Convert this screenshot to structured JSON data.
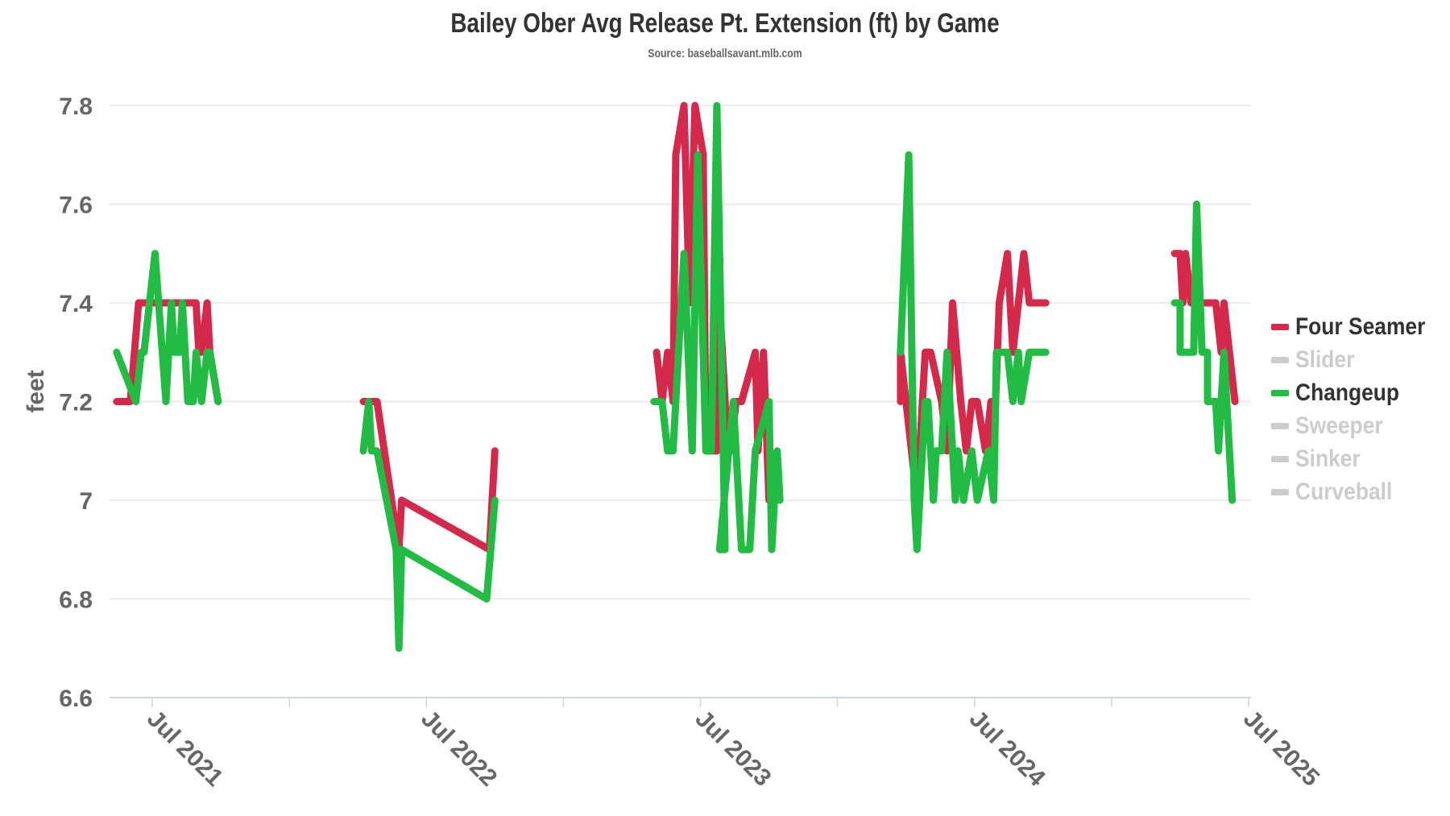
{
  "title": "Bailey Ober Avg Release Pt. Extension (ft) by Game",
  "subtitle": "Source: baseballsavant.mlb.com",
  "legend": [
    {
      "name": "Four Seamer",
      "color": "#D4294A",
      "active": true
    },
    {
      "name": "Slider",
      "color": "#CCCCCC",
      "active": false
    },
    {
      "name": "Changeup",
      "color": "#22BB44",
      "active": true
    },
    {
      "name": "Sweeper",
      "color": "#CCCCCC",
      "active": false
    },
    {
      "name": "Sinker",
      "color": "#CCCCCC",
      "active": false
    },
    {
      "name": "Curveball",
      "color": "#CCCCCC",
      "active": false
    }
  ],
  "colors": {
    "four_seamer": "#D4294A",
    "changeup": "#22BB44",
    "inactive": "#CCCCCC",
    "grid": "#E6E6E6",
    "axis": "#CCD6EB",
    "text": "#666666",
    "title": "#333333"
  },
  "chart_data": {
    "type": "line",
    "title": "Bailey Ober Avg Release Pt. Extension (ft) by Game",
    "subtitle": "Source: baseballsavant.mlb.com",
    "xlabel": "",
    "ylabel": "feet",
    "ylim": [
      6.6,
      7.8
    ],
    "yticks": [
      "7.8",
      "7.6",
      "7.4",
      "7.2",
      "7",
      "6.8",
      "6.6"
    ],
    "ytick_values": [
      7.8,
      7.6,
      7.4,
      7.2,
      7.0,
      6.8,
      6.6
    ],
    "xticks": [
      "Jul 2021",
      "Jul 2022",
      "Jul 2023",
      "Jul 2024",
      "Jul 2025"
    ],
    "xtick_values": [
      2021.5,
      2022.5,
      2023.5,
      2024.5,
      2025.5
    ],
    "xminor_values": [
      2022.0,
      2023.0,
      2024.0,
      2025.0
    ],
    "xlim": [
      2021.36,
      2025.51
    ],
    "grid": true,
    "legend_position": "right",
    "series": [
      {
        "name": "Four Seamer",
        "color": "#D4294A",
        "segments": [
          [
            [
              2021.37,
              7.2
            ],
            [
              2021.42,
              7.2
            ],
            [
              2021.45,
              7.4
            ],
            [
              2021.47,
              7.4
            ],
            [
              2021.63,
              7.4
            ],
            [
              2021.66,
              7.4
            ],
            [
              2021.67,
              7.3
            ],
            [
              2021.68,
              7.3
            ],
            [
              2021.7,
              7.4
            ],
            [
              2021.71,
              7.3
            ],
            [
              2021.74,
              7.2
            ]
          ],
          [
            [
              2022.27,
              7.2
            ],
            [
              2022.29,
              7.2
            ],
            [
              2022.32,
              7.2
            ],
            [
              2022.4,
              6.9
            ],
            [
              2022.41,
              7.0
            ],
            [
              2022.73,
              6.9
            ],
            [
              2022.75,
              7.1
            ]
          ],
          [
            [
              2023.34,
              7.3
            ],
            [
              2023.36,
              7.2
            ],
            [
              2023.38,
              7.3
            ],
            [
              2023.4,
              7.2
            ],
            [
              2023.41,
              7.7
            ],
            [
              2023.44,
              7.8
            ],
            [
              2023.46,
              7.4
            ],
            [
              2023.48,
              7.8
            ],
            [
              2023.51,
              7.7
            ],
            [
              2023.52,
              7.1
            ],
            [
              2023.56,
              7.1
            ],
            [
              2023.57,
              7.4
            ],
            [
              2023.6,
              7.1
            ],
            [
              2023.61,
              7.1
            ],
            [
              2023.63,
              7.2
            ],
            [
              2023.65,
              7.2
            ],
            [
              2023.7,
              7.3
            ],
            [
              2023.71,
              7.1
            ],
            [
              2023.73,
              7.3
            ],
            [
              2023.75,
              7.0
            ]
          ],
          [
            [
              2024.23,
              7.2
            ],
            [
              2024.23,
              7.3
            ],
            [
              2024.29,
              7.0
            ],
            [
              2024.32,
              7.3
            ],
            [
              2024.34,
              7.3
            ],
            [
              2024.38,
              7.2
            ],
            [
              2024.4,
              7.1
            ],
            [
              2024.42,
              7.4
            ],
            [
              2024.45,
              7.2
            ],
            [
              2024.47,
              7.1
            ],
            [
              2024.49,
              7.2
            ],
            [
              2024.51,
              7.2
            ],
            [
              2024.54,
              7.1
            ],
            [
              2024.56,
              7.2
            ],
            [
              2024.57,
              7.1
            ],
            [
              2024.59,
              7.4
            ],
            [
              2024.62,
              7.5
            ],
            [
              2024.64,
              7.3
            ],
            [
              2024.68,
              7.5
            ],
            [
              2024.7,
              7.4
            ],
            [
              2024.76,
              7.4
            ]
          ],
          [
            [
              2025.23,
              7.5
            ],
            [
              2025.25,
              7.5
            ],
            [
              2025.26,
              7.4
            ],
            [
              2025.27,
              7.5
            ],
            [
              2025.29,
              7.4
            ],
            [
              2025.35,
              7.4
            ],
            [
              2025.38,
              7.4
            ],
            [
              2025.4,
              7.3
            ],
            [
              2025.41,
              7.4
            ],
            [
              2025.45,
              7.2
            ]
          ]
        ]
      },
      {
        "name": "Changeup",
        "color": "#22BB44",
        "segments": [
          [
            [
              2021.37,
              7.3
            ],
            [
              2021.44,
              7.2
            ],
            [
              2021.46,
              7.3
            ],
            [
              2021.47,
              7.3
            ],
            [
              2021.51,
              7.5
            ],
            [
              2021.55,
              7.2
            ],
            [
              2021.57,
              7.4
            ],
            [
              2021.58,
              7.3
            ],
            [
              2021.6,
              7.3
            ],
            [
              2021.61,
              7.4
            ],
            [
              2021.63,
              7.2
            ],
            [
              2021.65,
              7.2
            ],
            [
              2021.66,
              7.3
            ],
            [
              2021.68,
              7.2
            ],
            [
              2021.7,
              7.3
            ],
            [
              2021.71,
              7.3
            ],
            [
              2021.74,
              7.2
            ]
          ],
          [
            [
              2022.27,
              7.1
            ],
            [
              2022.29,
              7.2
            ],
            [
              2022.3,
              7.1
            ],
            [
              2022.32,
              7.1
            ],
            [
              2022.39,
              6.9
            ],
            [
              2022.4,
              6.7
            ],
            [
              2022.41,
              6.9
            ],
            [
              2022.72,
              6.8
            ],
            [
              2022.75,
              7.0
            ]
          ],
          [
            [
              2023.33,
              7.2
            ],
            [
              2023.36,
              7.2
            ],
            [
              2023.38,
              7.1
            ],
            [
              2023.4,
              7.1
            ],
            [
              2023.44,
              7.5
            ],
            [
              2023.47,
              7.1
            ],
            [
              2023.49,
              7.7
            ],
            [
              2023.52,
              7.1
            ],
            [
              2023.54,
              7.1
            ],
            [
              2023.56,
              7.8
            ],
            [
              2023.59,
              6.9
            ],
            [
              2023.57,
              6.9
            ],
            [
              2023.62,
              7.2
            ],
            [
              2023.65,
              6.9
            ],
            [
              2023.68,
              6.9
            ],
            [
              2023.7,
              7.1
            ],
            [
              2023.75,
              7.2
            ],
            [
              2023.76,
              6.9
            ],
            [
              2023.78,
              7.1
            ],
            [
              2023.79,
              7.0
            ]
          ],
          [
            [
              2024.23,
              7.3
            ],
            [
              2024.26,
              7.7
            ],
            [
              2024.28,
              7.0
            ],
            [
              2024.29,
              6.9
            ],
            [
              2024.32,
              7.2
            ],
            [
              2024.33,
              7.2
            ],
            [
              2024.35,
              7.0
            ],
            [
              2024.36,
              7.1
            ],
            [
              2024.38,
              7.1
            ],
            [
              2024.4,
              7.3
            ],
            [
              2024.43,
              7.0
            ],
            [
              2024.44,
              7.1
            ],
            [
              2024.46,
              7.0
            ],
            [
              2024.49,
              7.1
            ],
            [
              2024.51,
              7.0
            ],
            [
              2024.55,
              7.1
            ],
            [
              2024.57,
              7.0
            ],
            [
              2024.58,
              7.3
            ],
            [
              2024.62,
              7.3
            ],
            [
              2024.64,
              7.2
            ],
            [
              2024.66,
              7.3
            ],
            [
              2024.67,
              7.2
            ],
            [
              2024.7,
              7.3
            ],
            [
              2024.76,
              7.3
            ]
          ],
          [
            [
              2025.23,
              7.4
            ],
            [
              2025.25,
              7.4
            ],
            [
              2025.25,
              7.3
            ],
            [
              2025.3,
              7.3
            ],
            [
              2025.31,
              7.6
            ],
            [
              2025.33,
              7.3
            ],
            [
              2025.35,
              7.3
            ],
            [
              2025.35,
              7.2
            ],
            [
              2025.38,
              7.2
            ],
            [
              2025.39,
              7.1
            ],
            [
              2025.41,
              7.3
            ],
            [
              2025.44,
              7.0
            ]
          ]
        ]
      }
    ]
  }
}
